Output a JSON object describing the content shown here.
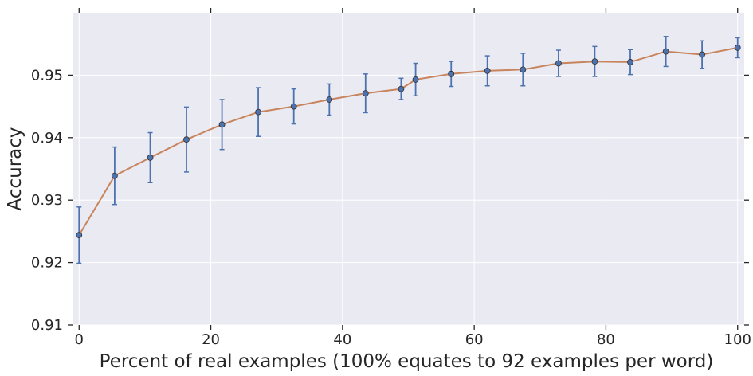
{
  "chart_data": {
    "type": "line",
    "title": "",
    "xlabel": "Percent of real examples (100% equates to 92 examples per word)",
    "ylabel": "Accuracy",
    "xlim": [
      -1,
      101
    ],
    "ylim": [
      0.91,
      0.96
    ],
    "xticks": [
      0,
      20,
      40,
      60,
      80,
      100
    ],
    "xtick_labels": [
      "0",
      "20",
      "40",
      "60",
      "80",
      "100"
    ],
    "yticks": [
      0.91,
      0.92,
      0.93,
      0.94,
      0.95
    ],
    "ytick_labels": [
      "0.91",
      "0.92",
      "0.93",
      "0.94",
      "0.95"
    ],
    "grid": true,
    "legend": "none",
    "colors": {
      "background": "#eaeaf2",
      "grid": "#ffffff",
      "line": "#c8845c",
      "marker": "#4c72b0",
      "errorbar": "#4c72b0",
      "text": "#262626"
    },
    "series": [
      {
        "x": [
          0,
          5.4,
          10.8,
          16.3,
          21.7,
          27.2,
          32.6,
          38.0,
          43.5,
          48.9,
          51.1,
          56.5,
          62.0,
          67.4,
          72.8,
          78.3,
          83.7,
          89.1,
          94.6,
          100
        ],
        "y": [
          0.9244,
          0.9339,
          0.9368,
          0.9397,
          0.9421,
          0.9441,
          0.945,
          0.9461,
          0.9471,
          0.9478,
          0.9493,
          0.9502,
          0.9507,
          0.9509,
          0.9519,
          0.9522,
          0.9521,
          0.9538,
          0.9533,
          0.9544
        ],
        "err": [
          0.0045,
          0.0046,
          0.004,
          0.0052,
          0.004,
          0.0039,
          0.0028,
          0.0025,
          0.0031,
          0.0017,
          0.0026,
          0.002,
          0.0024,
          0.0026,
          0.0021,
          0.0024,
          0.002,
          0.0024,
          0.0022,
          0.0016
        ]
      }
    ]
  }
}
